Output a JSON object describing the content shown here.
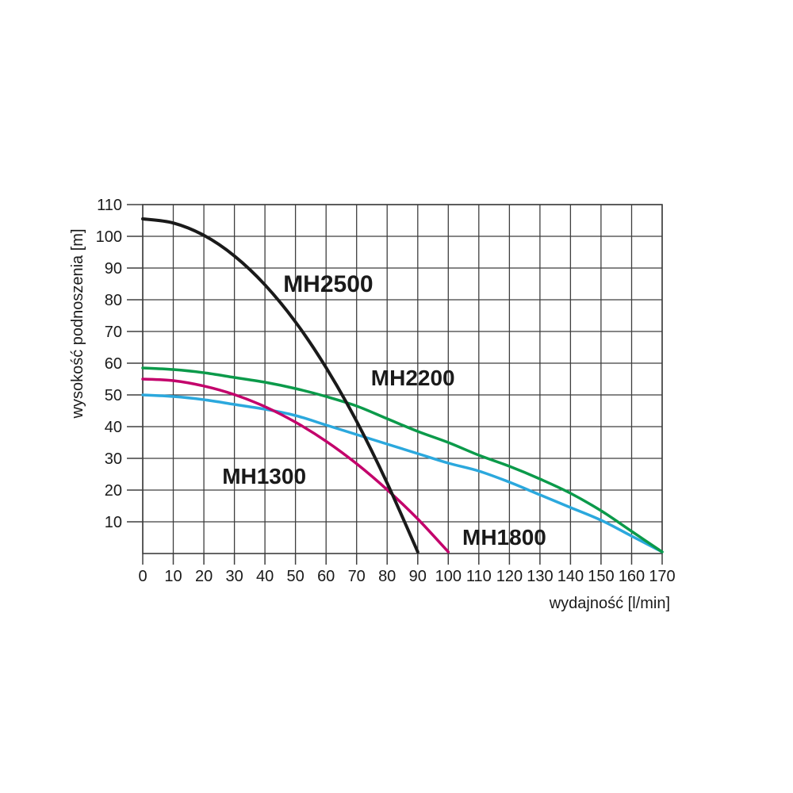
{
  "page": {
    "background": "#ffffff",
    "grid_color": "#3f3f3f",
    "text_color": "#1a1a1a"
  },
  "chart_data": {
    "type": "line",
    "title": "",
    "xlabel": "wydajność [l/min]",
    "ylabel": "wysokość podnoszenia [m]",
    "xlim": [
      0,
      170
    ],
    "ylim": [
      0,
      110
    ],
    "grid": true,
    "legend_position": "inline-labels",
    "x_ticks": [
      0,
      10,
      20,
      30,
      40,
      50,
      60,
      70,
      80,
      90,
      100,
      110,
      120,
      130,
      140,
      150,
      160,
      170
    ],
    "y_ticks": [
      10,
      20,
      30,
      40,
      50,
      60,
      70,
      80,
      90,
      100,
      110
    ],
    "series": [
      {
        "name": "MH2500",
        "color": "#1a1a1a",
        "stroke_width": 4,
        "x": [
          0,
          10,
          20,
          30,
          40,
          50,
          60,
          70,
          80,
          90
        ],
        "y": [
          105.5,
          104.2,
          100.3,
          93.8,
          84.7,
          73.0,
          58.6,
          41.7,
          22.2,
          0.5
        ],
        "label_pos": {
          "x": 46,
          "y": 82.5
        },
        "label_font_px": 30
      },
      {
        "name": "MH2200",
        "color": "#0b9a4a",
        "stroke_width": 3.5,
        "x": [
          0,
          10,
          20,
          30,
          40,
          50,
          60,
          70,
          80,
          90,
          100,
          110,
          120,
          130,
          140,
          150,
          160,
          170
        ],
        "y": [
          58.5,
          58.0,
          57.0,
          55.5,
          54.0,
          52.0,
          49.5,
          46.5,
          42.5,
          38.5,
          35.0,
          31.0,
          27.5,
          23.5,
          19.0,
          13.5,
          7.0,
          0.5
        ],
        "label_pos": {
          "x": 74.7,
          "y": 53
        },
        "label_font_px": 28
      },
      {
        "name": "MH1300",
        "color": "#c3006b",
        "stroke_width": 3.5,
        "x": [
          0,
          10,
          20,
          30,
          40,
          50,
          60,
          70,
          80,
          90,
          100
        ],
        "y": [
          55.0,
          54.5,
          52.8,
          50.1,
          46.3,
          41.4,
          35.4,
          28.3,
          20.1,
          10.9,
          0.5
        ],
        "label_pos": {
          "x": 26,
          "y": 22
        },
        "label_font_px": 28
      },
      {
        "name": "MH1800",
        "color": "#2ba8dd",
        "stroke_width": 3.5,
        "x": [
          0,
          10,
          20,
          30,
          40,
          50,
          60,
          70,
          80,
          90,
          100,
          110,
          120,
          130,
          140,
          150,
          160,
          170
        ],
        "y": [
          50.0,
          49.5,
          48.5,
          47.0,
          45.5,
          43.5,
          40.5,
          37.5,
          34.5,
          31.5,
          28.5,
          26.0,
          22.5,
          18.5,
          14.5,
          10.5,
          5.5,
          0.5
        ],
        "label_pos": {
          "x": 104.6,
          "y": 2.75
        },
        "label_font_px": 28
      }
    ]
  }
}
